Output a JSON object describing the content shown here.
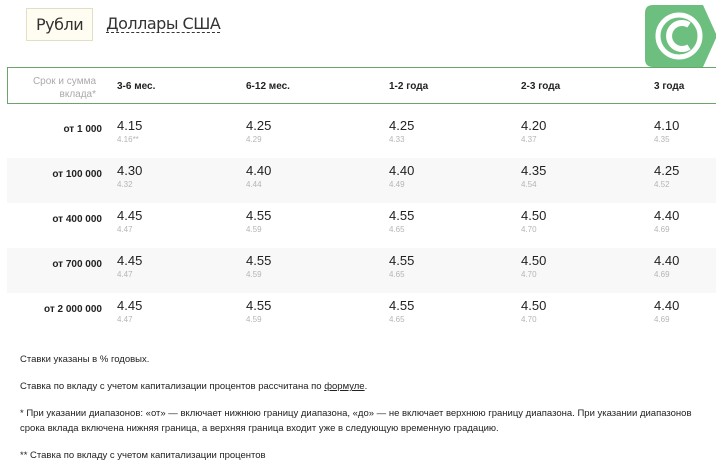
{
  "tabs": {
    "active": "Рубли",
    "other": "Доллары США"
  },
  "logo": {
    "name": "sberbank-logo",
    "color": "#6dbf7f"
  },
  "table": {
    "corner_label": [
      "Срок и сумма",
      "вклада*"
    ],
    "columns": [
      "3-6 мес.",
      "6-12 мес.",
      "1-2 года",
      "2-3 года",
      "3 года"
    ],
    "rows": [
      {
        "label": "от 1 000",
        "rates": [
          "4.15",
          "4.25",
          "4.25",
          "4.20",
          "4.10"
        ],
        "cap": [
          "4.16**",
          "4.29",
          "4.33",
          "4.37",
          "4.35"
        ]
      },
      {
        "label": "от 100 000",
        "rates": [
          "4.30",
          "4.40",
          "4.40",
          "4.35",
          "4.25"
        ],
        "cap": [
          "4.32",
          "4.44",
          "4.49",
          "4.54",
          "4.52"
        ]
      },
      {
        "label": "от 400 000",
        "rates": [
          "4.45",
          "4.55",
          "4.55",
          "4.50",
          "4.40"
        ],
        "cap": [
          "4.47",
          "4.59",
          "4.65",
          "4.70",
          "4.69"
        ]
      },
      {
        "label": "от 700 000",
        "rates": [
          "4.45",
          "4.55",
          "4.55",
          "4.50",
          "4.40"
        ],
        "cap": [
          "4.47",
          "4.59",
          "4.65",
          "4.70",
          "4.69"
        ]
      },
      {
        "label": "от 2 000 000",
        "rates": [
          "4.45",
          "4.55",
          "4.55",
          "4.50",
          "4.40"
        ],
        "cap": [
          "4.47",
          "4.59",
          "4.65",
          "4.70",
          "4.69"
        ]
      }
    ]
  },
  "notes": {
    "n1": "Ставки указаны в % годовых.",
    "n2_pre": "Ставка по вкладу с учетом капитализации процентов рассчитана по ",
    "n2_link": "формуле",
    "n2_post": ".",
    "n3": "* При указании диапазонов: «от» — включает нижнюю границу диапазона, «до» — не включает верхнюю границу диапазона. При указании диапазонов срока вклада включена нижняя граница, а верхняя граница входит уже в следующую временную градацию.",
    "n4": "** Ставка по вкладу с учетом капитализации процентов"
  }
}
